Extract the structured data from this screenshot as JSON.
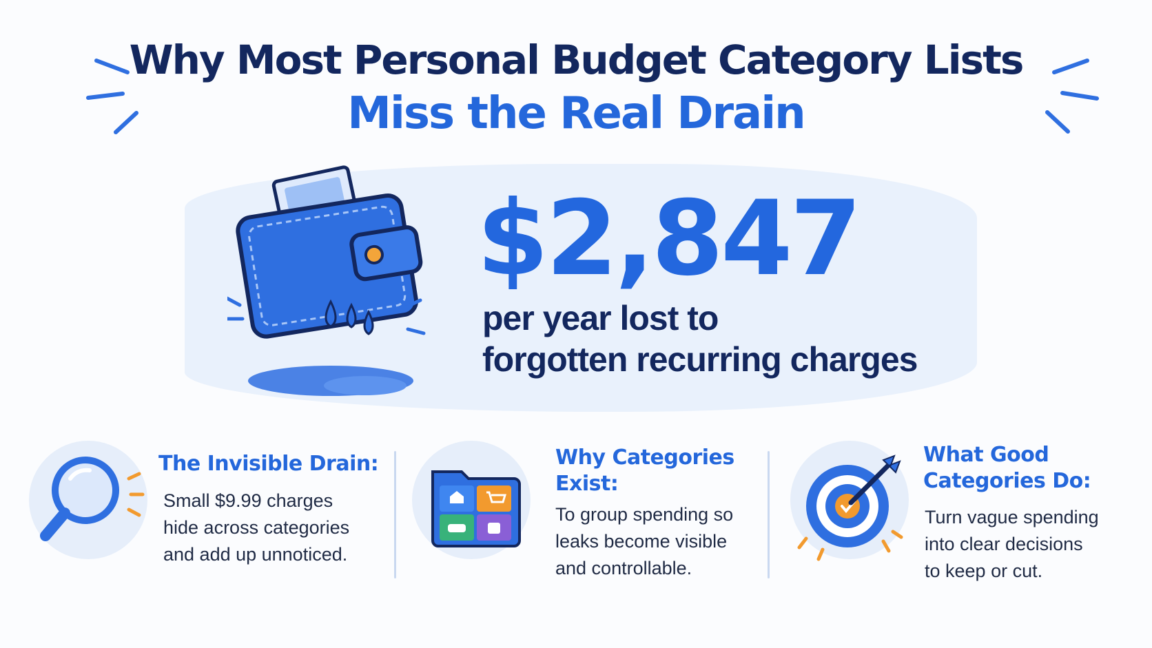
{
  "title": {
    "line1": "Why Most Personal Budget Category Lists",
    "line2": "Miss the Real Drain"
  },
  "stat": {
    "value": "$2,847",
    "description_line1": "per year lost to",
    "description_line2": "forgotten recurring charges",
    "illustration": "leaking-wallet-icon"
  },
  "columns": [
    {
      "icon": "magnifying-glass-icon",
      "heading_line1": "The Invisible Drain:",
      "body_lines": [
        "Small $9.99 charges",
        "hide across categories",
        "and add up unnoticed."
      ]
    },
    {
      "icon": "folder-categories-icon",
      "heading_line1": "Why Categories",
      "heading_line2": "Exist:",
      "body_lines": [
        "To group spending so",
        "leaks become visible",
        "and controllable."
      ]
    },
    {
      "icon": "target-arrow-icon",
      "heading_line1": "What Good",
      "heading_line2": "Categories Do:",
      "body_lines": [
        "Turn vague spending",
        "into clear decisions",
        "to keep or cut."
      ]
    }
  ],
  "colors": {
    "navy": "#13275e",
    "accent_blue": "#2467db",
    "light_blue": "#e6eefa",
    "orange": "#f29a2e"
  }
}
